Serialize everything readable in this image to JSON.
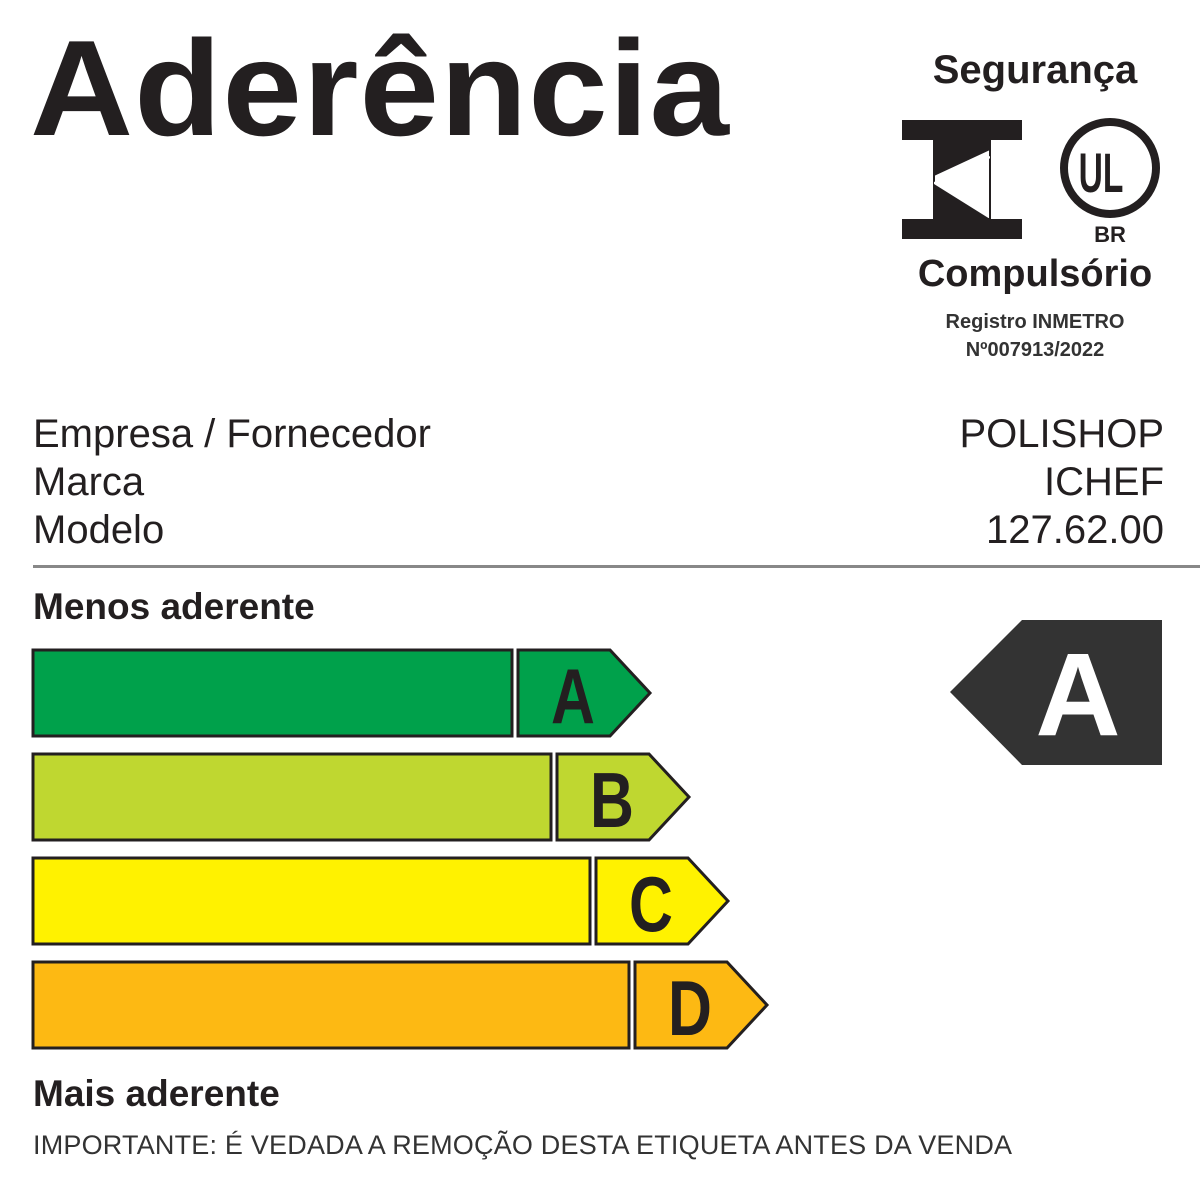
{
  "title": "Aderência",
  "certification": {
    "top_label": "Segurança",
    "bottom_label": "Compulsório",
    "registry_line1": "Registro INMETRO",
    "registry_line2": "Nº007913/2022",
    "inmetro_logo": "INMETRO",
    "ul_logo": "UL",
    "ul_country": "BR"
  },
  "product_info": {
    "rows": [
      {
        "label": "Empresa / Fornecedor",
        "value": "POLISHOP"
      },
      {
        "label": "Marca",
        "value": "ICHEF"
      },
      {
        "label": "Modelo",
        "value": "127.62.00"
      }
    ]
  },
  "scale": {
    "top_label": "Menos aderente",
    "bottom_label": "Mais aderente",
    "classes": [
      {
        "letter": "A",
        "color": "#00a14b"
      },
      {
        "letter": "B",
        "color": "#bfd730"
      },
      {
        "letter": "C",
        "color": "#fff200"
      },
      {
        "letter": "D",
        "color": "#fdb913"
      }
    ],
    "selected_class": "A",
    "indicator_color": "#333333"
  },
  "notice": "IMPORTANTE: É VEDADA A REMOÇÃO DESTA ETIQUETA ANTES DA VENDA"
}
